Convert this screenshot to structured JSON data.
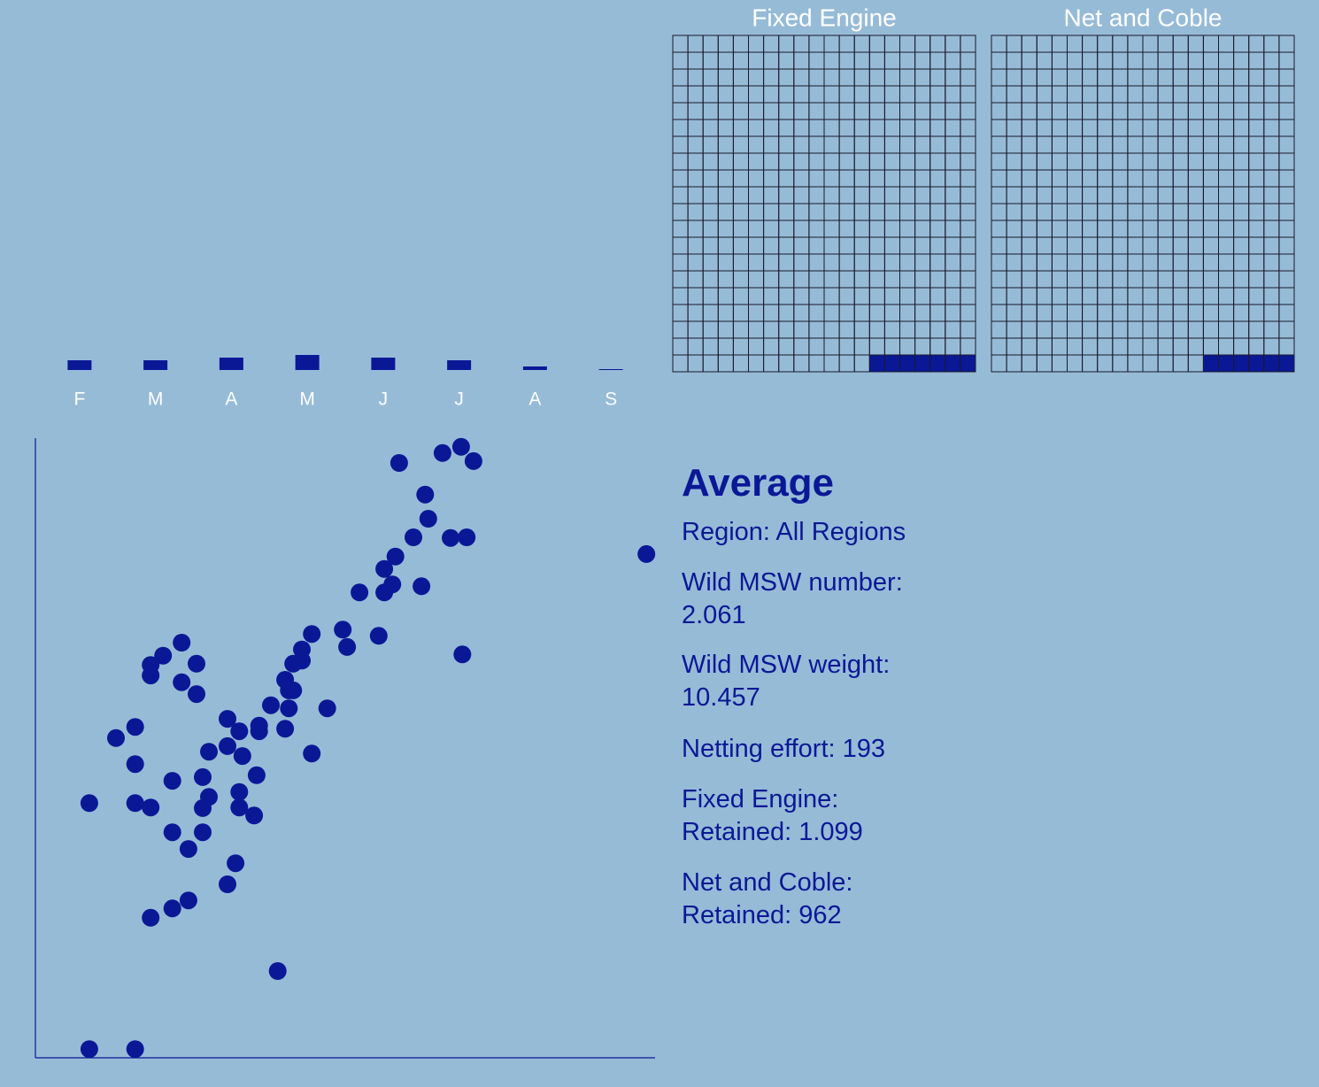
{
  "chart_data": [
    {
      "type": "bar",
      "categories": [
        "F",
        "M",
        "A",
        "M",
        "J",
        "J",
        "A",
        "S"
      ],
      "values": [
        11,
        11,
        14,
        17,
        14,
        11,
        4,
        1
      ],
      "color": "#0a1896"
    },
    {
      "type": "waffle",
      "title": "Fixed Engine",
      "rows": 20,
      "cols": 20,
      "values": [
        7
      ],
      "color": "#0a1896"
    },
    {
      "type": "waffle",
      "title": "Net and Coble",
      "rows": 20,
      "cols": 20,
      "values": [
        6
      ],
      "color": "#0a1896"
    },
    {
      "type": "scatter",
      "color": "#0a1896",
      "xlim": [
        0,
        100
      ],
      "ylim": [
        0,
        100
      ],
      "x": [
        8.7,
        16.1,
        18.6,
        8.7,
        16.1,
        13.0,
        16.1,
        16.1,
        18.6,
        18.6,
        20.6,
        23.6,
        26.0,
        23.6,
        26.0,
        22.1,
        22.1,
        24.7,
        27.0,
        27.0,
        28.0,
        27.0,
        28.0,
        31.0,
        31.0,
        32.9,
        33.4,
        36.1,
        36.1,
        35.7,
        32.9,
        32.9,
        35.3,
        32.3,
        31.0,
        24.7,
        22.1,
        18.6,
        39.1,
        38.0,
        40.3,
        40.3,
        40.9,
        40.9,
        41.6,
        43.0,
        43.0,
        44.6,
        44.6,
        47.1,
        49.6,
        50.3,
        52.3,
        55.4,
        56.3,
        56.3,
        57.6,
        58.1,
        58.7,
        61.0,
        62.3,
        62.9,
        63.4,
        65.7,
        67.0,
        68.7,
        69.6,
        70.7,
        68.9,
        98.6,
        41.6
      ],
      "y": [
        41.1,
        41.1,
        40.4,
        1.4,
        1.4,
        51.6,
        53.4,
        47.4,
        63.4,
        61.7,
        64.9,
        67.0,
        63.6,
        60.6,
        58.7,
        44.7,
        36.4,
        33.7,
        45.3,
        40.3,
        42.1,
        36.4,
        49.4,
        54.7,
        50.3,
        52.7,
        48.7,
        53.6,
        52.7,
        45.6,
        42.9,
        40.4,
        39.1,
        31.4,
        28.0,
        25.4,
        24.1,
        22.6,
        14.0,
        56.9,
        53.1,
        61.0,
        56.4,
        59.3,
        63.6,
        64.1,
        65.9,
        68.4,
        49.1,
        56.4,
        69.1,
        66.3,
        75.1,
        68.1,
        75.1,
        78.9,
        76.4,
        80.9,
        96.0,
        84.0,
        76.1,
        90.9,
        87.0,
        97.6,
        83.9,
        98.6,
        84.0,
        96.3,
        65.1,
        81.3,
        59.3
      ]
    }
  ],
  "summary": {
    "title": "Average",
    "blocks": [
      [
        "Region: All Regions"
      ],
      [
        "Wild MSW number:",
        "2.061"
      ],
      [
        "Wild MSW weight:",
        "10.457"
      ],
      [
        "Netting effort: 193"
      ],
      [
        "Fixed Engine:",
        "Retained: 1.099"
      ],
      [
        "Net and Coble:",
        "Retained: 962"
      ]
    ]
  }
}
